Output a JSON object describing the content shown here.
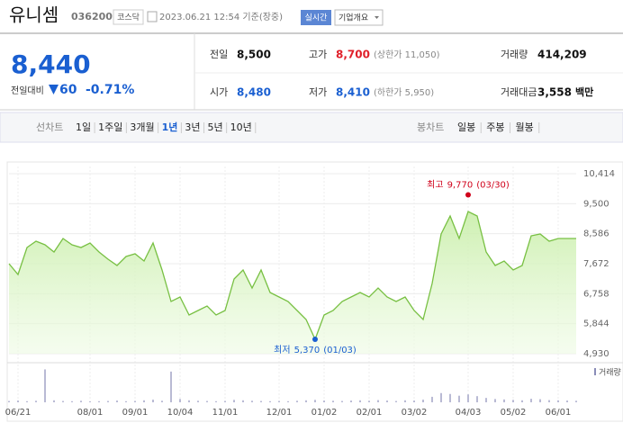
{
  "header": {
    "name": "유니셈",
    "code": "036200",
    "market": "코스닥",
    "timestamp": "2023.06.21 12:54 기준(장중)",
    "realtime": "실시간",
    "company_info": "기업개요"
  },
  "quote": {
    "price": "8,440",
    "change_label": "전일대비",
    "change": "60",
    "change_rate": "-0.71%"
  },
  "stats": [
    [
      {
        "label": "전일",
        "value": "8,500",
        "color": "#111111"
      },
      {
        "label": "고가",
        "value": "8,700",
        "note": "(상한가 11,050)",
        "color": "#e0202a"
      },
      {
        "label": "거래량",
        "value": "414,209",
        "color": "#111111"
      }
    ],
    [
      {
        "label": "시가",
        "value": "8,480",
        "color": "#1a5fd1"
      },
      {
        "label": "저가",
        "value": "8,410",
        "note": "(하한가 5,950)",
        "color": "#1a5fd1"
      },
      {
        "label": "거래대금",
        "value": "3,558",
        "unit": "백만",
        "color": "#111111"
      }
    ]
  ],
  "tabs": {
    "line_label": "선차트",
    "line_periods": [
      "1일",
      "1주일",
      "3개월",
      "1년",
      "3년",
      "5년",
      "10년"
    ],
    "selected": 3,
    "candle_label": "봉차트",
    "candle_periods": [
      "일봉",
      "주봉",
      "월봉"
    ]
  },
  "chart_data": {
    "type": "area",
    "color": "#78c043",
    "values": [
      7672,
      7343,
      8166,
      8357,
      8248,
      8028,
      8440,
      8248,
      8166,
      8303,
      8028,
      7809,
      7617,
      7891,
      7974,
      7754,
      8303,
      7480,
      6520,
      6657,
      6109,
      6246,
      6383,
      6109,
      6246,
      7206,
      7480,
      6932,
      7480,
      6795,
      6657,
      6520,
      6246,
      5972,
      5370,
      6109,
      6246,
      6520,
      6657,
      6795,
      6657,
      6932,
      6657,
      6520,
      6657,
      6246,
      5972,
      7069,
      8577,
      9125,
      8440,
      9262,
      9125,
      8028,
      7617,
      7754,
      7480,
      7617,
      8522,
      8577,
      8357,
      8440,
      8440,
      8440
    ],
    "xlim": [
      0,
      63
    ],
    "xticks": [
      {
        "value": 1,
        "label": "06/21"
      },
      {
        "value": 9,
        "label": "08/01"
      },
      {
        "value": 14,
        "label": "09/01"
      },
      {
        "value": 19,
        "label": "10/04"
      },
      {
        "value": 24,
        "label": "11/01"
      },
      {
        "value": 30,
        "label": "12/01"
      },
      {
        "value": 35,
        "label": "01/02"
      },
      {
        "value": 40,
        "label": "02/01"
      },
      {
        "value": 45,
        "label": "03/02"
      },
      {
        "value": 51,
        "label": "04/03"
      },
      {
        "value": 56,
        "label": "05/02"
      },
      {
        "value": 61,
        "label": "06/01"
      }
    ],
    "ylim": [
      4930,
      10414
    ],
    "yticks": [
      {
        "value": 10414,
        "label": "10,414"
      },
      {
        "value": 9500,
        "label": "9,500"
      },
      {
        "value": 8586,
        "label": "8,586"
      },
      {
        "value": 7672,
        "label": "7,672"
      },
      {
        "value": 6758,
        "label": "6,758"
      },
      {
        "value": 5844,
        "label": "5,844"
      },
      {
        "value": 4930,
        "label": "4,930"
      }
    ],
    "high": {
      "label": "최고",
      "value": 9770,
      "value_label": "9,770",
      "date": "(03/30)",
      "color": "#d0021b"
    },
    "low": {
      "label": "최저",
      "value": 5370,
      "value_label": "5,370",
      "date": "(01/03)",
      "color": "#1a5fd1"
    },
    "volume": {
      "name": "거래량",
      "color": "#8a8db8",
      "ylim": [
        0,
        1600000
      ],
      "values": [
        60000,
        80000,
        50000,
        70000,
        1500000,
        90000,
        60000,
        50000,
        70000,
        40000,
        50000,
        60000,
        80000,
        50000,
        60000,
        90000,
        120000,
        70000,
        1400000,
        150000,
        90000,
        70000,
        60000,
        50000,
        60000,
        110000,
        90000,
        70000,
        60000,
        50000,
        60000,
        50000,
        70000,
        90000,
        110000,
        80000,
        70000,
        60000,
        80000,
        90000,
        70000,
        100000,
        80000,
        60000,
        90000,
        80000,
        120000,
        250000,
        420000,
        380000,
        300000,
        360000,
        280000,
        200000,
        150000,
        130000,
        110000,
        90000,
        160000,
        140000,
        100000,
        90000,
        80000,
        70000
      ]
    }
  }
}
